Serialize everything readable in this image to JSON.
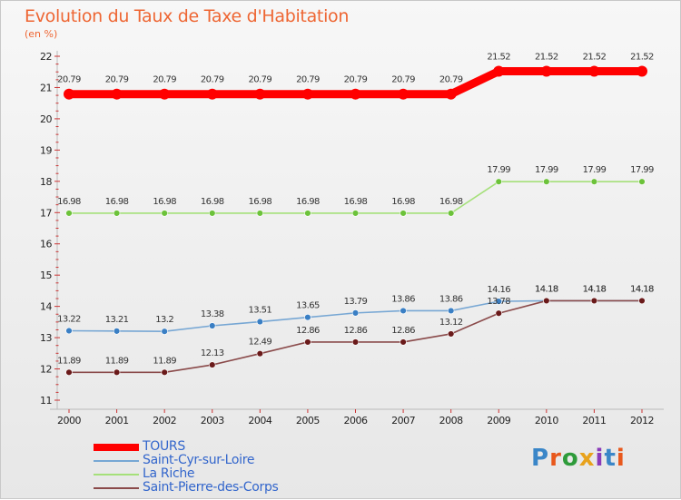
{
  "header": {
    "title": "Evolution du Taux de Taxe d'Habitation",
    "subtitle": "(en %)"
  },
  "branding": {
    "logo_text": "Proxiti",
    "logo_colors": [
      "#3a86c8",
      "#e8581c",
      "#2e9b3a",
      "#e8a21c",
      "#8a3ab9",
      "#3a86c8",
      "#e8581c"
    ]
  },
  "chart_data": {
    "type": "line",
    "title": "Evolution du Taux de Taxe d'Habitation",
    "ylabel": "(en %)",
    "xlabel": "",
    "x": [
      "2000",
      "2001",
      "2002",
      "2003",
      "2004",
      "2005",
      "2006",
      "2007",
      "2008",
      "2009",
      "2010",
      "2011",
      "2012"
    ],
    "yticks": [
      "11",
      "12",
      "13",
      "14",
      "15",
      "16",
      "17",
      "18",
      "19",
      "20",
      "21",
      "22"
    ],
    "ylim": [
      11,
      22
    ],
    "grid": false,
    "legend_position": "bottom-left",
    "series": [
      {
        "name": "TOURS",
        "color": "#ff0000",
        "marker_color": "#ff0000",
        "values": [
          20.79,
          20.79,
          20.79,
          20.79,
          20.79,
          20.79,
          20.79,
          20.79,
          20.79,
          21.52,
          21.52,
          21.52,
          21.52
        ],
        "labels": [
          "20.79",
          "20.79",
          "20.79",
          "20.79",
          "20.79",
          "20.79",
          "20.79",
          "20.79",
          "20.79",
          "21.52",
          "21.52",
          "21.52",
          "21.52"
        ]
      },
      {
        "name": "Saint-Cyr-sur-Loire",
        "color": "#77a7d4",
        "marker_color": "#3a7fc4",
        "values": [
          13.22,
          13.21,
          13.2,
          13.38,
          13.51,
          13.65,
          13.79,
          13.86,
          13.86,
          14.16,
          14.18,
          14.18,
          14.18
        ],
        "labels": [
          "13.22",
          "13.21",
          "13.2",
          "13.38",
          "13.51",
          "13.65",
          "13.79",
          "13.86",
          "13.86",
          "14.16",
          "14.18",
          "14.18",
          "14.18"
        ]
      },
      {
        "name": "La Riche",
        "color": "#a5e07a",
        "marker_color": "#6cc23a",
        "values": [
          16.98,
          16.98,
          16.98,
          16.98,
          16.98,
          16.98,
          16.98,
          16.98,
          16.98,
          17.99,
          17.99,
          17.99,
          17.99
        ],
        "labels": [
          "16.98",
          "16.98",
          "16.98",
          "16.98",
          "16.98",
          "16.98",
          "16.98",
          "16.98",
          "16.98",
          "17.99",
          "17.99",
          "17.99",
          "17.99"
        ]
      },
      {
        "name": "Saint-Pierre-des-Corps",
        "color": "#8a4a4a",
        "marker_color": "#6a1a1a",
        "values": [
          11.89,
          11.89,
          11.89,
          12.13,
          12.49,
          12.86,
          12.86,
          12.86,
          13.12,
          13.78,
          14.18,
          14.18,
          14.18
        ],
        "labels": [
          "11.89",
          "11.89",
          "11.89",
          "12.13",
          "12.49",
          "12.86",
          "12.86",
          "12.86",
          "13.12",
          "13.78",
          "14.18",
          "14.18",
          "14.18"
        ]
      }
    ]
  }
}
